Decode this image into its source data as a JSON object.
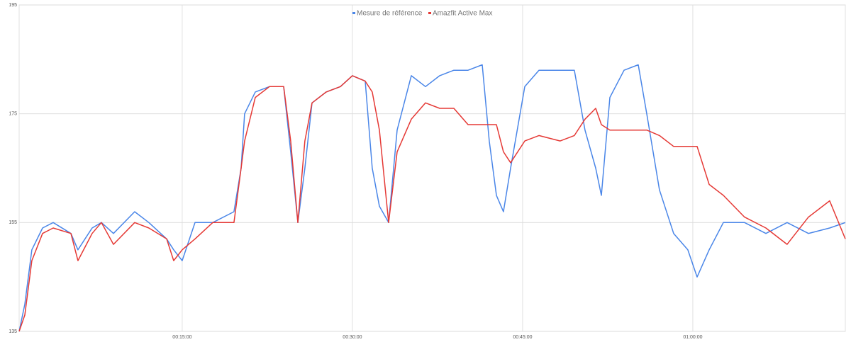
{
  "chart_data": {
    "type": "line",
    "x": [
      0.63,
      1.13,
      1.75,
      2.69,
      3.63,
      5.19,
      5.81,
      7.06,
      7.88,
      8.94,
      10.81,
      12.06,
      13.63,
      14.25,
      15,
      16.13,
      17.69,
      19.56,
      20.19,
      20.5,
      21.44,
      22.69,
      23.94,
      24.56,
      25.19,
      25.81,
      26.44,
      27.69,
      28.94,
      30,
      31.13,
      31.75,
      32.38,
      33.19,
      33.94,
      35.19,
      36.44,
      37.69,
      38.94,
      40.19,
      41.44,
      42.06,
      42.69,
      43.31,
      43.94,
      45.19,
      46.44,
      48.31,
      49.56,
      50.5,
      51.44,
      51.94,
      52.69,
      53.94,
      55.19,
      55.94,
      57.06,
      58.31,
      59.56,
      60.38,
      61.44,
      62.69,
      64.56,
      66.44,
      68.31,
      70.19,
      72.06,
      73.44
    ],
    "series": [
      {
        "name": "Mesure de référence",
        "color": "#4a86e8",
        "values": [
          135,
          140,
          150,
          154,
          155,
          153,
          150,
          154,
          155,
          153,
          157,
          155,
          152,
          150,
          148,
          155,
          155,
          157,
          165,
          175,
          179,
          180,
          180,
          168,
          155,
          165,
          177,
          179,
          180,
          182,
          181,
          165,
          158,
          155,
          172,
          182,
          180,
          182,
          183,
          183,
          184,
          170,
          160,
          157,
          165,
          180,
          183,
          183,
          183,
          172,
          165,
          160,
          178,
          183,
          184,
          175,
          161,
          153,
          150,
          145,
          150,
          155,
          155,
          153,
          155,
          153,
          154,
          155
        ]
      },
      {
        "name": "Amazfit Active Max",
        "color": "#e53935",
        "values": [
          135,
          138,
          148,
          153,
          154,
          153,
          148,
          153,
          155,
          151,
          155,
          154,
          152,
          148,
          150,
          152,
          155,
          155,
          165,
          170,
          178,
          180,
          180,
          170,
          155,
          170,
          177,
          179,
          180,
          182,
          181,
          179,
          172,
          155,
          168,
          174,
          177,
          176,
          176,
          173,
          173,
          173,
          173,
          168,
          166,
          170,
          171,
          170,
          171,
          174,
          176,
          173,
          172,
          172,
          172,
          172,
          171,
          169,
          169,
          169,
          162,
          160,
          156,
          154,
          151,
          156,
          159,
          152
        ]
      }
    ],
    "xlim": [
      0.63,
      73.44
    ],
    "xticks": [
      {
        "value": 15,
        "label": "00:15:00"
      },
      {
        "value": 30,
        "label": "00:30:00"
      },
      {
        "value": 45,
        "label": "00:45:00"
      },
      {
        "value": 60,
        "label": "01:00:00"
      }
    ],
    "ylim": [
      135,
      195
    ],
    "yticks": [
      135,
      155,
      175,
      195
    ],
    "grid": true,
    "legend": "top"
  }
}
